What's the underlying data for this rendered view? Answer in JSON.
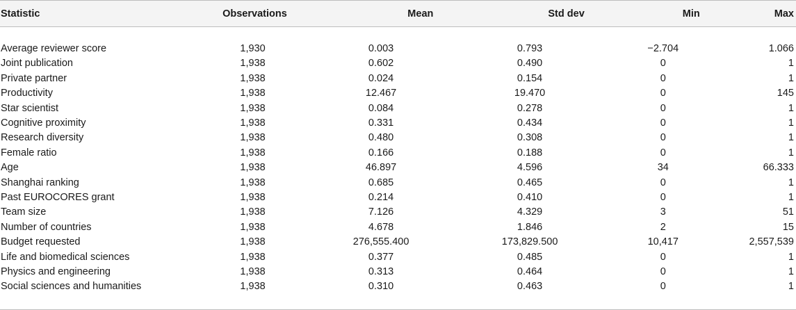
{
  "table": {
    "headers": [
      "Statistic",
      "Observations",
      "Mean",
      "Std dev",
      "Min",
      "Max"
    ],
    "rows": [
      [
        "Average reviewer score",
        "1,930",
        "0.003",
        "0.793",
        "−2.704",
        "1.066"
      ],
      [
        "Joint publication",
        "1,938",
        "0.602",
        "0.490",
        "0",
        "1"
      ],
      [
        "Private partner",
        "1,938",
        "0.024",
        "0.154",
        "0",
        "1"
      ],
      [
        "Productivity",
        "1,938",
        "12.467",
        "19.470",
        "0",
        "145"
      ],
      [
        "Star scientist",
        "1,938",
        "0.084",
        "0.278",
        "0",
        "1"
      ],
      [
        "Cognitive proximity",
        "1,938",
        "0.331",
        "0.434",
        "0",
        "1"
      ],
      [
        "Research diversity",
        "1,938",
        "0.480",
        "0.308",
        "0",
        "1"
      ],
      [
        "Female ratio",
        "1,938",
        "0.166",
        "0.188",
        "0",
        "1"
      ],
      [
        "Age",
        "1,938",
        "46.897",
        "4.596",
        "34",
        "66.333"
      ],
      [
        "Shanghai ranking",
        "1,938",
        "0.685",
        "0.465",
        "0",
        "1"
      ],
      [
        "Past EUROCORES grant",
        "1,938",
        "0.214",
        "0.410",
        "0",
        "1"
      ],
      [
        "Team size",
        "1,938",
        "7.126",
        "4.329",
        "3",
        "51"
      ],
      [
        "Number of countries",
        "1,938",
        "4.678",
        "1.846",
        "2",
        "15"
      ],
      [
        "Budget requested",
        "1,938",
        "276,555.400",
        "173,829.500",
        "10,417",
        "2,557,539"
      ],
      [
        "Life and biomedical sciences",
        "1,938",
        "0.377",
        "0.485",
        "0",
        "1"
      ],
      [
        "Physics and engineering",
        "1,938",
        "0.313",
        "0.464",
        "0",
        "1"
      ],
      [
        "Social sciences and humanities",
        "1,938",
        "0.310",
        "0.463",
        "0",
        "1"
      ]
    ]
  }
}
